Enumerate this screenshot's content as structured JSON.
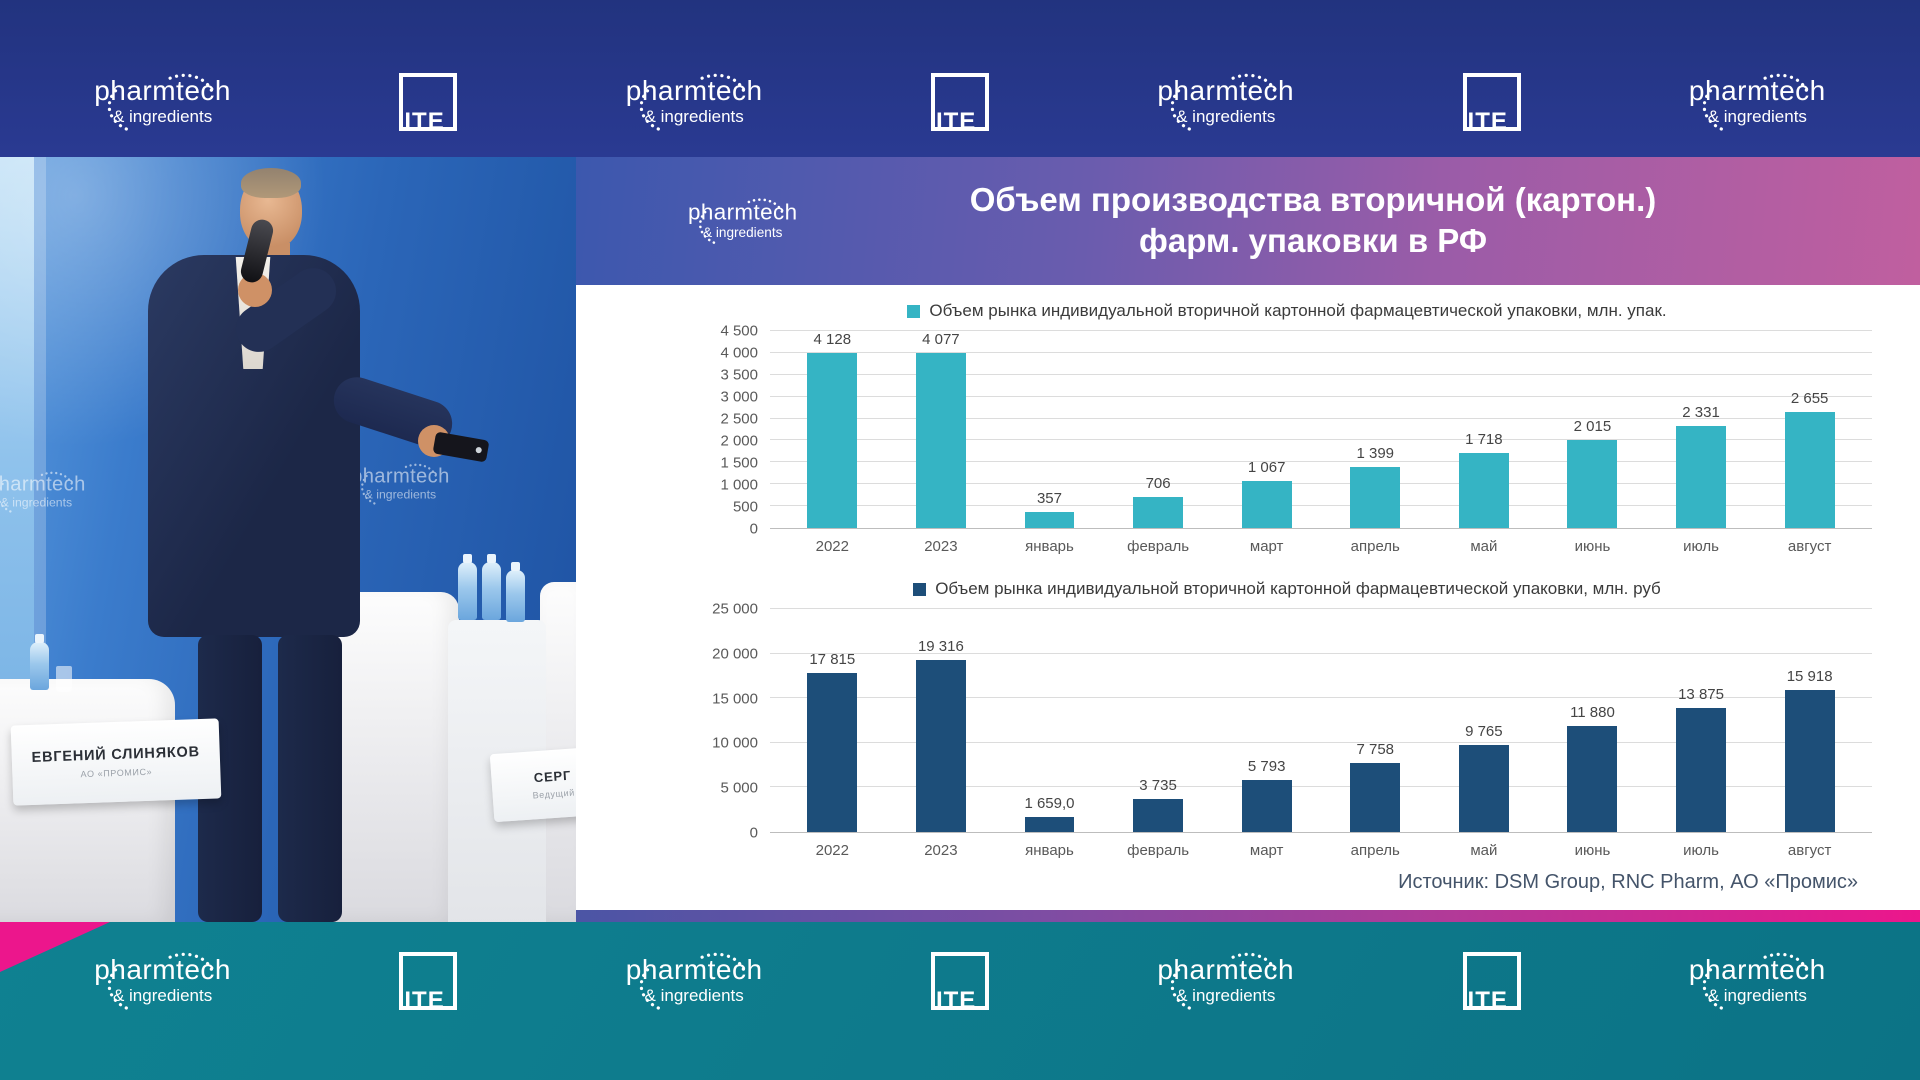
{
  "colors": {
    "top-banner": "#22337f",
    "bottom-banner": "#0f8191",
    "accent-pink": "#ec168c",
    "header-grad-a": "#3c58ae",
    "header-grad-b": "#c05f9f",
    "chart1-bar": "#35b4c4",
    "chart2-bar": "#1d4e79"
  },
  "banners": {
    "pharmtech": {
      "line1": "pharmtech",
      "line2": "& ingredients"
    },
    "ite": "ITE",
    "sequence_top": [
      "pharmtech",
      "ite",
      "pharmtech",
      "ite",
      "pharmtech",
      "ite",
      "pharmtech"
    ],
    "sequence_bottom": [
      "pharmtech",
      "ite",
      "pharmtech",
      "ite",
      "pharmtech",
      "ite",
      "pharmtech"
    ]
  },
  "video": {
    "name_card": {
      "name": "ЕВГЕНИЙ СЛИНЯКОВ",
      "org": "АО «ПРОМИС»"
    },
    "partial_card": {
      "name": "СЕРГ",
      "role": "Ведущий"
    }
  },
  "slide": {
    "title_line1": "Объем производства вторичной (картон.)",
    "title_line2": "фарм. упаковки в РФ",
    "source": "Источник: DSM Group, RNC Pharm, АО «Промис»"
  },
  "chart_data": [
    {
      "type": "bar",
      "title": "Объем рынка индивидуальной вторичной картонной фармацевтической упаковки, млн. упак.",
      "categories": [
        "2022",
        "2023",
        "январь",
        "февраль",
        "март",
        "апрель",
        "май",
        "июнь",
        "июль",
        "август"
      ],
      "values": [
        4128,
        4077,
        357,
        706,
        1067,
        1399,
        1718,
        2015,
        2331,
        2655
      ],
      "value_labels": [
        "4 128",
        "4 077",
        "357",
        "706",
        "1 067",
        "1 399",
        "1 718",
        "2 015",
        "2 331",
        "2 655"
      ],
      "ylim": [
        0,
        4500
      ],
      "ytick_step": 500,
      "ytick_labels": [
        "0",
        "500",
        "1 000",
        "1 500",
        "2 000",
        "2 500",
        "3 000",
        "3 500",
        "4 000",
        "4 500"
      ],
      "bar_color": "#35b4c4",
      "grid": true,
      "legend_position": "top"
    },
    {
      "type": "bar",
      "title": "Объем рынка индивидуальной вторичной картонной фармацевтической упаковки, млн. руб",
      "categories": [
        "2022",
        "2023",
        "январь",
        "февраль",
        "март",
        "апрель",
        "май",
        "июнь",
        "июль",
        "август"
      ],
      "values": [
        17815,
        19316,
        1659,
        3735,
        5793,
        7758,
        9765,
        11880,
        13875,
        15918
      ],
      "value_labels": [
        "17 815",
        "19 316",
        "1 659,0",
        "3 735",
        "5 793",
        "7 758",
        "9 765",
        "11 880",
        "13 875",
        "15 918"
      ],
      "ylim": [
        0,
        25000
      ],
      "ytick_step": 5000,
      "ytick_labels": [
        "0",
        "5 000",
        "10 000",
        "15 000",
        "20 000",
        "25 000"
      ],
      "bar_color": "#1d4e79",
      "grid": true,
      "legend_position": "top"
    }
  ]
}
